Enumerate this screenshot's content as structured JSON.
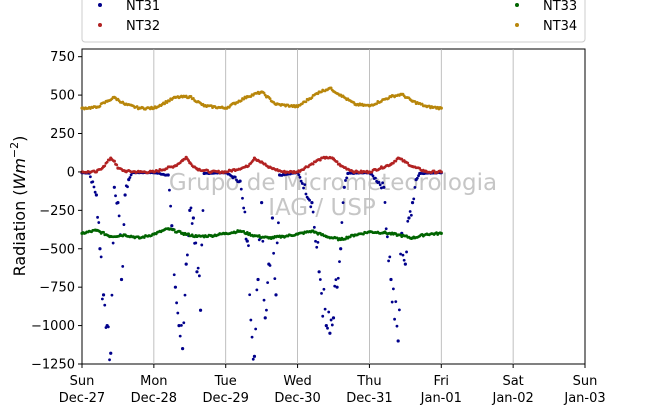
{
  "chart_data": {
    "type": "scatter",
    "xlabel": "",
    "ylabel_main": "Radiation (",
    "ylabel_unit": "Wm",
    "ylabel_exp": "−2",
    "ylabel_close": ")",
    "ylim": [
      -1250,
      800
    ],
    "yticks": [
      -1250,
      -1000,
      -750,
      -500,
      -250,
      0,
      250,
      500,
      750
    ],
    "ytick_labels": [
      "−1250",
      "−1000",
      "−750",
      "−500",
      "−250",
      "0",
      "250",
      "500",
      "750"
    ],
    "x_range_days": [
      0,
      7
    ],
    "xticks": [
      {
        "day": "Sun",
        "date": "Dec-27"
      },
      {
        "day": "Mon",
        "date": "Dec-28"
      },
      {
        "day": "Tue",
        "date": "Dec-29"
      },
      {
        "day": "Wed",
        "date": "Dec-30"
      },
      {
        "day": "Thu",
        "date": "Dec-31"
      },
      {
        "day": "Fri",
        "date": "Jan-01"
      },
      {
        "day": "Sat",
        "date": "Jan-02"
      },
      {
        "day": "Sun",
        "date": "Jan-03"
      }
    ],
    "grid": "vertical",
    "legend_position": "top",
    "watermark_line1": "Grupo de Micrometeorologia",
    "watermark_line2": "IAG / USP",
    "series": [
      {
        "name": "NT31",
        "color": "#00008b",
        "points": [
          [
            0.0,
            -5
          ],
          [
            0.1,
            -8
          ],
          [
            0.2,
            -150
          ],
          [
            0.25,
            -500
          ],
          [
            0.3,
            -800
          ],
          [
            0.35,
            -1000
          ],
          [
            0.4,
            -1180
          ],
          [
            0.45,
            -100
          ],
          [
            0.5,
            -200
          ],
          [
            0.55,
            -700
          ],
          [
            0.6,
            -150
          ],
          [
            0.65,
            -50
          ],
          [
            0.7,
            -5
          ],
          [
            1.0,
            -5
          ],
          [
            1.2,
            -20
          ],
          [
            1.25,
            -350
          ],
          [
            1.3,
            -750
          ],
          [
            1.35,
            -1000
          ],
          [
            1.4,
            -1150
          ],
          [
            1.45,
            -600
          ],
          [
            1.5,
            -250
          ],
          [
            1.55,
            -300
          ],
          [
            1.6,
            -650
          ],
          [
            1.65,
            -900
          ],
          [
            1.7,
            -10
          ],
          [
            2.0,
            -5
          ],
          [
            2.2,
            -60
          ],
          [
            2.3,
            -450
          ],
          [
            2.4,
            -1200
          ],
          [
            2.45,
            -700
          ],
          [
            2.5,
            -200
          ],
          [
            2.55,
            -950
          ],
          [
            2.6,
            -600
          ],
          [
            2.65,
            -300
          ],
          [
            2.7,
            -800
          ],
          [
            2.75,
            -20
          ],
          [
            3.0,
            -5
          ],
          [
            3.2,
            -200
          ],
          [
            3.3,
            -650
          ],
          [
            3.4,
            -1000
          ],
          [
            3.45,
            -1050
          ],
          [
            3.5,
            -950
          ],
          [
            3.55,
            -750
          ],
          [
            3.6,
            -500
          ],
          [
            3.65,
            -100
          ],
          [
            3.7,
            -10
          ],
          [
            4.0,
            -5
          ],
          [
            4.2,
            -100
          ],
          [
            4.3,
            -700
          ],
          [
            4.4,
            -1100
          ],
          [
            4.45,
            -400
          ],
          [
            4.5,
            -600
          ],
          [
            4.55,
            -300
          ],
          [
            4.6,
            -200
          ],
          [
            4.65,
            -50
          ],
          [
            4.7,
            -10
          ],
          [
            5.0,
            -5
          ]
        ]
      },
      {
        "name": "NT32",
        "color": "#b22222",
        "points": [
          [
            0.0,
            0
          ],
          [
            0.2,
            0
          ],
          [
            0.3,
            35
          ],
          [
            0.4,
            90
          ],
          [
            0.45,
            70
          ],
          [
            0.5,
            25
          ],
          [
            0.6,
            5
          ],
          [
            0.8,
            0
          ],
          [
            1.0,
            0
          ],
          [
            1.3,
            40
          ],
          [
            1.4,
            75
          ],
          [
            1.45,
            95
          ],
          [
            1.5,
            60
          ],
          [
            1.6,
            20
          ],
          [
            1.8,
            0
          ],
          [
            2.0,
            0
          ],
          [
            2.3,
            35
          ],
          [
            2.4,
            90
          ],
          [
            2.45,
            75
          ],
          [
            2.5,
            65
          ],
          [
            2.6,
            30
          ],
          [
            2.8,
            0
          ],
          [
            3.0,
            0
          ],
          [
            3.3,
            80
          ],
          [
            3.4,
            95
          ],
          [
            3.5,
            85
          ],
          [
            3.6,
            40
          ],
          [
            3.8,
            0
          ],
          [
            4.0,
            0
          ],
          [
            4.3,
            50
          ],
          [
            4.4,
            90
          ],
          [
            4.5,
            65
          ],
          [
            4.6,
            35
          ],
          [
            4.8,
            0
          ],
          [
            5.0,
            0
          ]
        ]
      },
      {
        "name": "NT33",
        "color": "#006400",
        "points": [
          [
            0.0,
            -400
          ],
          [
            0.2,
            -380
          ],
          [
            0.4,
            -420
          ],
          [
            0.6,
            -410
          ],
          [
            0.8,
            -430
          ],
          [
            1.0,
            -405
          ],
          [
            1.2,
            -370
          ],
          [
            1.4,
            -400
          ],
          [
            1.6,
            -420
          ],
          [
            1.8,
            -415
          ],
          [
            2.0,
            -400
          ],
          [
            2.2,
            -385
          ],
          [
            2.4,
            -415
          ],
          [
            2.6,
            -430
          ],
          [
            2.8,
            -420
          ],
          [
            3.0,
            -405
          ],
          [
            3.2,
            -385
          ],
          [
            3.4,
            -420
          ],
          [
            3.6,
            -440
          ],
          [
            3.8,
            -410
          ],
          [
            4.0,
            -390
          ],
          [
            4.2,
            -395
          ],
          [
            4.4,
            -410
          ],
          [
            4.6,
            -430
          ],
          [
            4.8,
            -405
          ],
          [
            5.0,
            -400
          ]
        ]
      },
      {
        "name": "NT34",
        "color": "#b8860b",
        "points": [
          [
            0.0,
            415
          ],
          [
            0.2,
            420
          ],
          [
            0.35,
            460
          ],
          [
            0.45,
            485
          ],
          [
            0.6,
            440
          ],
          [
            0.8,
            415
          ],
          [
            1.0,
            415
          ],
          [
            1.3,
            485
          ],
          [
            1.5,
            490
          ],
          [
            1.7,
            430
          ],
          [
            2.0,
            415
          ],
          [
            2.3,
            490
          ],
          [
            2.5,
            520
          ],
          [
            2.7,
            440
          ],
          [
            3.0,
            425
          ],
          [
            3.3,
            520
          ],
          [
            3.45,
            545
          ],
          [
            3.6,
            500
          ],
          [
            3.8,
            440
          ],
          [
            4.0,
            430
          ],
          [
            4.3,
            490
          ],
          [
            4.45,
            505
          ],
          [
            4.6,
            460
          ],
          [
            4.8,
            425
          ],
          [
            5.0,
            415
          ]
        ]
      }
    ]
  }
}
